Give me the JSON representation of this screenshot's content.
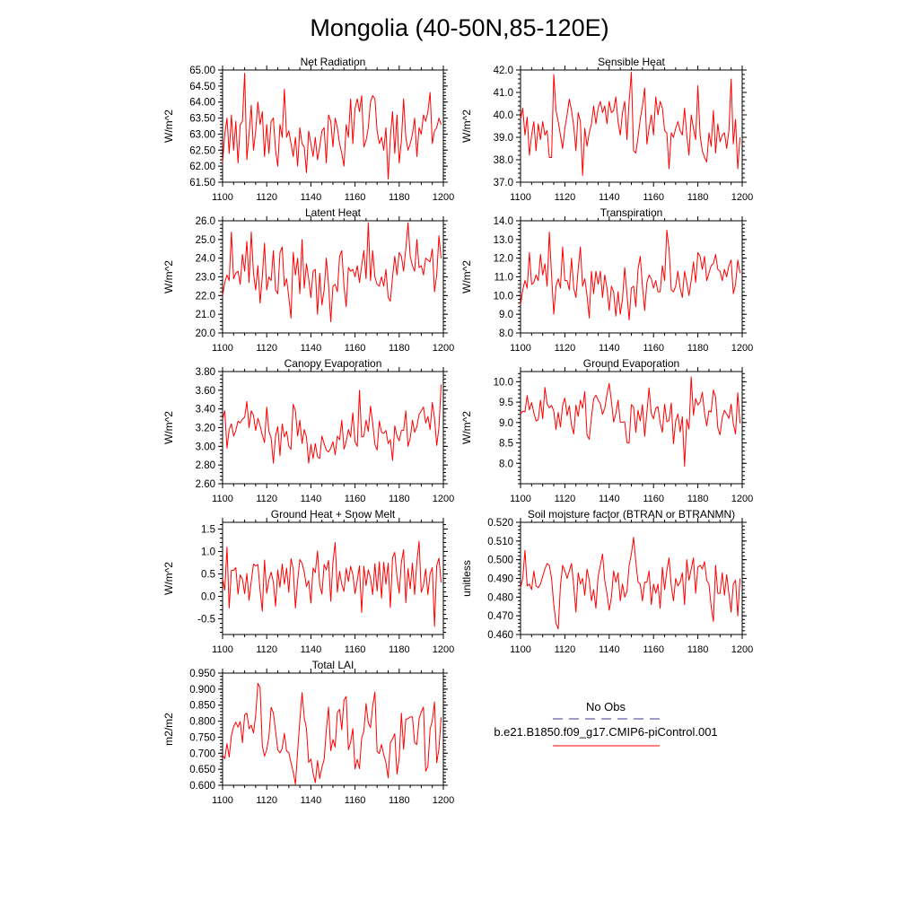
{
  "figure": {
    "title": "Mongolia (40-50N,85-120E)"
  },
  "legend": {
    "obs_label": "No Obs",
    "obs_color": "#3b3b9a",
    "model_label": "b.e21.B1850.f09_g17.CMIP6-piControl.001",
    "model_color": "#ff0000"
  },
  "chart_data": [
    {
      "type": "line",
      "title": "Net Radiation",
      "ylabel": "W/m^2",
      "xlim": [
        1100,
        1200
      ],
      "xticks": [
        1100,
        1120,
        1140,
        1160,
        1180,
        1200
      ],
      "xtick_labels": [
        "1100",
        "1120",
        "1140",
        "1160",
        "1180",
        "1200"
      ],
      "ylim": [
        61.5,
        65.0
      ],
      "yticks": [
        61.5,
        62.0,
        62.5,
        63.0,
        63.5,
        64.0,
        64.5,
        65.0
      ],
      "ytick_labels": [
        "61.50",
        "62.00",
        "62.50",
        "63.00",
        "63.50",
        "64.00",
        "64.50",
        "65.00"
      ],
      "color": "#ff0000",
      "x_start": 1100,
      "values": [
        62.1,
        63.0,
        63.5,
        62.4,
        63.6,
        62.5,
        63.4,
        62.1,
        63.3,
        63.4,
        64.9,
        62.2,
        63.0,
        63.9,
        62.5,
        63.1,
        64.0,
        63.3,
        63.7,
        62.3,
        63.3,
        62.4,
        63.4,
        63.5,
        62.5,
        62.0,
        63.3,
        62.9,
        64.4,
        62.9,
        63.1,
        62.7,
        62.3,
        62.9,
        62.0,
        63.2,
        62.7,
        62.6,
        61.8,
        63.1,
        62.7,
        62.3,
        62.9,
        62.2,
        62.6,
        63.1,
        63.2,
        62.1,
        63.6,
        63.4,
        62.6,
        63.5,
        63.2,
        62.7,
        62.4,
        62.0,
        63.3,
        62.9,
        64.1,
        62.7,
        63.8,
        64.1,
        63.7,
        64.2,
        62.6,
        62.8,
        63.2,
        64.0,
        64.2,
        64.1,
        63.1,
        62.7,
        62.9,
        62.5,
        63.2,
        61.6,
        62.9,
        63.7,
        62.4,
        63.6,
        62.1,
        62.8,
        64.1,
        62.9,
        62.5,
        62.7,
        63.0,
        63.5,
        62.3,
        63.2,
        63.0,
        63.6,
        63.4,
        63.7,
        64.3,
        62.7,
        63.1,
        63.2,
        63.5,
        63.3
      ]
    },
    {
      "type": "line",
      "title": "Sensible Heat",
      "ylabel": "W/m^2",
      "xlim": [
        1100,
        1200
      ],
      "xticks": [
        1100,
        1120,
        1140,
        1160,
        1180,
        1200
      ],
      "xtick_labels": [
        "1100",
        "1120",
        "1140",
        "1160",
        "1180",
        "1200"
      ],
      "ylim": [
        37.0,
        42.0
      ],
      "yticks": [
        37.0,
        38.0,
        39.0,
        40.0,
        41.0,
        42.0
      ],
      "ytick_labels": [
        "37.0",
        "38.0",
        "39.0",
        "40.0",
        "41.0",
        "42.0"
      ],
      "color": "#ff0000",
      "x_start": 1100,
      "values": [
        39.8,
        40.3,
        39.1,
        39.9,
        38.2,
        39.1,
        39.7,
        38.4,
        39.6,
        38.9,
        39.7,
        39.1,
        39.3,
        38.1,
        38.1,
        41.8,
        40.2,
        39.7,
        39.1,
        38.5,
        39.4,
        40.0,
        40.7,
        40.2,
        39.5,
        38.4,
        40.1,
        39.7,
        37.3,
        39.4,
        38.6,
        39.2,
        39.6,
        40.4,
        39.6,
        40.3,
        40.6,
        40.1,
        40.4,
        39.6,
        40.6,
        40.1,
        40.2,
        40.8,
        39.7,
        39.1,
        40.1,
        40.6,
        38.9,
        40.6,
        41.9,
        38.4,
        38.3,
        39.0,
        39.8,
        40.4,
        41.2,
        38.7,
        39.4,
        40.0,
        39.1,
        40.8,
        40.0,
        40.6,
        40.3,
        39.3,
        39.2,
        37.6,
        39.2,
        39.0,
        39.4,
        39.7,
        39.3,
        39.1,
        40.3,
        39.1,
        38.2,
        40.0,
        39.4,
        38.9,
        41.3,
        39.1,
        38.4,
        38.1,
        37.9,
        39.2,
        38.6,
        40.2,
        38.3,
        39.6,
        38.8,
        39.1,
        39.2,
        38.5,
        39.3,
        41.6,
        38.7,
        39.8,
        37.6,
        39.0
      ]
    },
    {
      "type": "line",
      "title": "Latent Heat",
      "ylabel": "W/m^2",
      "xlim": [
        1100,
        1200
      ],
      "xticks": [
        1100,
        1120,
        1140,
        1160,
        1180,
        1200
      ],
      "xtick_labels": [
        "1100",
        "1120",
        "1140",
        "1160",
        "1180",
        "1200"
      ],
      "ylim": [
        20.0,
        26.0
      ],
      "yticks": [
        20.0,
        21.0,
        22.0,
        23.0,
        24.0,
        25.0,
        26.0
      ],
      "ytick_labels": [
        "20.0",
        "21.0",
        "22.0",
        "23.0",
        "24.0",
        "25.0",
        "26.0"
      ],
      "color": "#ff0000",
      "x_start": 1100,
      "values": [
        22.0,
        22.7,
        23.1,
        22.8,
        25.4,
        22.9,
        23.2,
        23.3,
        22.6,
        24.2,
        23.3,
        24.9,
        22.7,
        25.4,
        23.2,
        22.3,
        23.6,
        21.6,
        23.0,
        24.8,
        22.3,
        23.0,
        22.8,
        24.4,
        22.3,
        22.1,
        24.3,
        24.6,
        22.5,
        22.9,
        21.9,
        20.8,
        24.3,
        23.1,
        24.0,
        22.1,
        25.0,
        22.4,
        23.7,
        22.9,
        21.9,
        23.3,
        23.4,
        21.0,
        23.2,
        21.5,
        22.3,
        24.0,
        22.6,
        20.6,
        22.5,
        22.6,
        22.2,
        24.1,
        24.4,
        22.5,
        21.4,
        23.5,
        23.3,
        23.4,
        23.0,
        23.6,
        22.7,
        23.6,
        24.4,
        22.9,
        25.9,
        22.8,
        24.4,
        23.0,
        22.6,
        22.5,
        23.0,
        22.5,
        23.4,
        21.9,
        21.7,
        23.0,
        24.1,
        23.1,
        24.3,
        24.1,
        23.3,
        24.5,
        25.9,
        24.1,
        23.6,
        23.3,
        25.0,
        23.5,
        23.6,
        23.1,
        24.0,
        23.9,
        23.8,
        24.5,
        22.2,
        23.1,
        25.2,
        24.0
      ]
    },
    {
      "type": "line",
      "title": "Transpiration",
      "ylabel": "W/m^2",
      "xlim": [
        1100,
        1200
      ],
      "xticks": [
        1100,
        1120,
        1140,
        1160,
        1180,
        1200
      ],
      "xtick_labels": [
        "1100",
        "1120",
        "1140",
        "1160",
        "1180",
        "1200"
      ],
      "ylim": [
        8.0,
        14.0
      ],
      "yticks": [
        8.0,
        9.0,
        10.0,
        11.0,
        12.0,
        13.0,
        14.0
      ],
      "ytick_labels": [
        "8.0",
        "9.0",
        "10.0",
        "11.0",
        "12.0",
        "13.0",
        "14.0"
      ],
      "color": "#ff0000",
      "x_start": 1100,
      "values": [
        9.5,
        10.3,
        10.8,
        10.4,
        12.3,
        10.6,
        10.7,
        11.1,
        10.8,
        12.2,
        11.1,
        11.7,
        10.5,
        13.4,
        11.1,
        9.0,
        10.5,
        10.9,
        10.4,
        12.6,
        10.8,
        10.8,
        10.3,
        12.0,
        10.4,
        9.9,
        11.4,
        12.6,
        10.5,
        10.9,
        10.0,
        8.8,
        11.3,
        10.1,
        11.3,
        10.6,
        11.3,
        9.9,
        11.1,
        10.4,
        9.2,
        10.5,
        10.2,
        8.9,
        10.2,
        9.0,
        9.8,
        11.5,
        10.1,
        8.7,
        10.4,
        10.5,
        9.4,
        11.4,
        12.1,
        10.5,
        9.2,
        10.7,
        11.1,
        10.9,
        10.4,
        10.8,
        10.2,
        10.2,
        11.6,
        10.8,
        13.5,
        12.5,
        10.3,
        10.2,
        10.5,
        11.3,
        10.4,
        9.9,
        11.3,
        10.7,
        10.0,
        10.8,
        11.8,
        10.7,
        12.3,
        12.1,
        11.4,
        12.1,
        10.8,
        11.2,
        11.6,
        11.7,
        12.2,
        11.4,
        11.3,
        10.8,
        11.4,
        11.0,
        11.6,
        11.9,
        10.1,
        10.6,
        11.9,
        11.2
      ]
    },
    {
      "type": "line",
      "title": "Canopy Evaporation",
      "ylabel": "W/m^2",
      "xlim": [
        1100,
        1200
      ],
      "xticks": [
        1100,
        1120,
        1140,
        1160,
        1180,
        1200
      ],
      "xtick_labels": [
        "1100",
        "1120",
        "1140",
        "1160",
        "1180",
        "1200"
      ],
      "ylim": [
        2.6,
        3.8
      ],
      "yticks": [
        2.6,
        2.8,
        3.0,
        3.2,
        3.4,
        3.6,
        3.8
      ],
      "ytick_labels": [
        "2.60",
        "2.80",
        "3.00",
        "3.20",
        "3.40",
        "3.60",
        "3.80"
      ],
      "color": "#ff0000",
      "x_start": 1100,
      "values": [
        3.29,
        3.38,
        2.98,
        3.18,
        3.24,
        3.11,
        3.17,
        3.27,
        3.25,
        3.29,
        3.31,
        3.48,
        3.2,
        3.38,
        3.33,
        3.17,
        3.3,
        3.22,
        3.12,
        3.04,
        3.42,
        3.16,
        3.09,
        2.82,
        3.11,
        3.21,
        2.9,
        3.24,
        3.1,
        3.16,
        3.0,
        2.97,
        3.45,
        3.38,
        3.11,
        3.28,
        3.03,
        3.18,
        3.1,
        2.82,
        3.02,
        2.87,
        3.03,
        2.89,
        2.87,
        3.11,
        3.03,
        2.96,
        2.94,
        2.98,
        3.05,
        2.91,
        3.11,
        3.07,
        3.28,
        2.97,
        3.05,
        3.18,
        3.1,
        3.36,
        3.05,
        3.0,
        3.6,
        3.1,
        3.11,
        3.28,
        3.16,
        3.43,
        3.25,
        3.02,
        2.96,
        3.27,
        3.15,
        3.14,
        3.17,
        3.03,
        3.07,
        2.85,
        3.22,
        3.11,
        3.06,
        3.17,
        3.17,
        3.38,
        3.0,
        3.09,
        3.28,
        3.15,
        3.21,
        3.34,
        3.38,
        3.42,
        3.25,
        3.32,
        3.18,
        3.47,
        3.3,
        3.01,
        3.2,
        3.66
      ]
    },
    {
      "type": "line",
      "title": "Ground Evaporation",
      "ylabel": "W/m^2",
      "xlim": [
        1100,
        1200
      ],
      "xticks": [
        1100,
        1120,
        1140,
        1160,
        1180,
        1200
      ],
      "xtick_labels": [
        "1100",
        "1120",
        "1140",
        "1160",
        "1180",
        "1200"
      ],
      "ylim": [
        7.5,
        10.25
      ],
      "yticks": [
        8.0,
        8.5,
        9.0,
        9.5,
        10.0
      ],
      "ytick_labels": [
        "8.0",
        "8.5",
        "9.0",
        "9.5",
        "10.0"
      ],
      "color": "#ff0000",
      "x_start": 1100,
      "values": [
        9.21,
        9.28,
        9.26,
        9.66,
        9.31,
        9.49,
        9.24,
        9.04,
        9.07,
        9.55,
        9.09,
        9.86,
        9.46,
        9.36,
        9.42,
        9.28,
        8.83,
        9.25,
        8.89,
        9.42,
        9.6,
        9.17,
        9.41,
        8.93,
        8.72,
        9.43,
        9.15,
        9.55,
        9.35,
        9.76,
        8.69,
        8.59,
        9.13,
        9.58,
        9.67,
        9.55,
        9.46,
        9.2,
        9.35,
        9.69,
        9.96,
        9.52,
        9.01,
        9.22,
        9.55,
        9.01,
        9.01,
        9.02,
        8.51,
        8.5,
        9.44,
        9.38,
        8.76,
        9.3,
        9.04,
        9.44,
        8.66,
        9.25,
        9.85,
        9.22,
        9.09,
        9.35,
        9.39,
        8.99,
        8.76,
        9.45,
        9.02,
        9.05,
        9.48,
        8.48,
        9.04,
        9.21,
        8.77,
        9.14,
        7.93,
        9.08,
        8.84,
        10.12,
        9.18,
        9.59,
        9.43,
        9.5,
        9.74,
        9.24,
        8.92,
        9.29,
        9.26,
        9.8,
        9.62,
        8.87,
        8.7,
        9.12,
        9.3,
        9.21,
        9.1,
        9.45,
        8.97,
        8.72,
        9.73,
        8.98
      ]
    },
    {
      "type": "line",
      "title": "Ground Heat + Snow Melt",
      "ylabel": "W/m^2",
      "xlim": [
        1100,
        1200
      ],
      "xticks": [
        1100,
        1120,
        1140,
        1160,
        1180,
        1200
      ],
      "xtick_labels": [
        "1100",
        "1120",
        "1140",
        "1160",
        "1180",
        "1200"
      ],
      "ylim": [
        -0.85,
        1.65
      ],
      "yticks": [
        -0.5,
        0.0,
        0.5,
        1.0,
        1.5
      ],
      "ytick_labels": [
        "-0.5",
        "0.0",
        "0.5",
        "1.0",
        "1.5"
      ],
      "color": "#ff0000",
      "x_start": 1100,
      "values": [
        0.39,
        0.14,
        1.1,
        -0.26,
        0.58,
        0.58,
        0.64,
        0.05,
        0.48,
        0.38,
        0.06,
        0.51,
        -0.09,
        0.34,
        0.72,
        0.68,
        0.71,
        0.13,
        -0.33,
        0.81,
        0.07,
        0.37,
        0.54,
        0.32,
        -0.22,
        0.59,
        0.2,
        0.72,
        0.27,
        0.63,
        0.09,
        0.84,
        0.61,
        -0.26,
        0.35,
        0.82,
        0.74,
        0.54,
        0.22,
        0.35,
        -0.15,
        0.63,
        0.53,
        1.01,
        0.25,
        0.05,
        0.71,
        0.59,
        0.8,
        -0.11,
        0.76,
        1.2,
        0.09,
        0.56,
        0.26,
        0.11,
        0.63,
        0.33,
        0.67,
        0.49,
        0.06,
        0.35,
        0.68,
        -0.36,
        0.67,
        0.24,
        0.59,
        0.41,
        0.04,
        0.73,
        0.12,
        0.77,
        -0.04,
        0.76,
        0.27,
        0.74,
        -0.25,
        0.86,
        0.98,
        0.43,
        0.07,
        0.76,
        1.04,
        -0.14,
        0.62,
        0.17,
        0.74,
        0.04,
        0.76,
        1.23,
        0.09,
        0.25,
        0.61,
        0.04,
        0.51,
        0.64,
        -0.67,
        0.69,
        0.85,
        0.31
      ]
    },
    {
      "type": "line",
      "title": "Soil moisture factor (BTRAN or BTRANMN)",
      "ylabel": "unitless",
      "xlim": [
        1100,
        1200
      ],
      "xticks": [
        1100,
        1120,
        1140,
        1160,
        1180,
        1200
      ],
      "xtick_labels": [
        "1100",
        "1120",
        "1140",
        "1160",
        "1180",
        "1200"
      ],
      "ylim": [
        0.46,
        0.52
      ],
      "yticks": [
        0.46,
        0.47,
        0.48,
        0.49,
        0.5,
        0.51,
        0.52
      ],
      "ytick_labels": [
        "0.460",
        "0.470",
        "0.480",
        "0.490",
        "0.500",
        "0.510",
        "0.520"
      ],
      "color": "#ff0000",
      "x_start": 1100,
      "values": [
        0.485,
        0.49,
        0.505,
        0.486,
        0.487,
        0.484,
        0.494,
        0.486,
        0.485,
        0.487,
        0.491,
        0.495,
        0.498,
        0.497,
        0.49,
        0.476,
        0.466,
        0.463,
        0.486,
        0.497,
        0.494,
        0.49,
        0.494,
        0.498,
        0.486,
        0.472,
        0.493,
        0.487,
        0.49,
        0.481,
        0.495,
        0.489,
        0.478,
        0.484,
        0.474,
        0.491,
        0.497,
        0.503,
        0.489,
        0.482,
        0.473,
        0.48,
        0.494,
        0.488,
        0.493,
        0.478,
        0.487,
        0.48,
        0.483,
        0.497,
        0.503,
        0.512,
        0.499,
        0.488,
        0.487,
        0.478,
        0.488,
        0.488,
        0.494,
        0.476,
        0.487,
        0.482,
        0.487,
        0.474,
        0.496,
        0.484,
        0.494,
        0.501,
        0.486,
        0.478,
        0.49,
        0.486,
        0.488,
        0.493,
        0.476,
        0.5,
        0.489,
        0.495,
        0.501,
        0.482,
        0.496,
        0.497,
        0.495,
        0.499,
        0.489,
        0.487,
        0.475,
        0.467,
        0.497,
        0.482,
        0.482,
        0.493,
        0.481,
        0.492,
        0.482,
        0.472,
        0.487,
        0.489,
        0.47,
        0.49
      ]
    },
    {
      "type": "line",
      "title": "Total LAI",
      "ylabel": "m2/m2",
      "xlim": [
        1100,
        1200
      ],
      "xticks": [
        1100,
        1120,
        1140,
        1160,
        1180,
        1200
      ],
      "xtick_labels": [
        "1100",
        "1120",
        "1140",
        "1160",
        "1180",
        "1200"
      ],
      "ylim": [
        0.6,
        0.95
      ],
      "yticks": [
        0.6,
        0.65,
        0.7,
        0.75,
        0.8,
        0.85,
        0.9,
        0.95
      ],
      "ytick_labels": [
        "0.600",
        "0.650",
        "0.700",
        "0.750",
        "0.800",
        "0.850",
        "0.900",
        "0.950"
      ],
      "color": "#ff0000",
      "x_start": 1100,
      "values": [
        0.694,
        0.683,
        0.73,
        0.688,
        0.755,
        0.783,
        0.797,
        0.781,
        0.799,
        0.733,
        0.82,
        0.825,
        0.776,
        0.788,
        0.763,
        0.818,
        0.918,
        0.904,
        0.723,
        0.691,
        0.711,
        0.752,
        0.843,
        0.826,
        0.77,
        0.711,
        0.701,
        0.715,
        0.762,
        0.707,
        0.702,
        0.67,
        0.642,
        0.603,
        0.705,
        0.802,
        0.889,
        0.81,
        0.778,
        0.671,
        0.682,
        0.638,
        0.608,
        0.677,
        0.621,
        0.656,
        0.68,
        0.772,
        0.844,
        0.708,
        0.743,
        0.719,
        0.827,
        0.837,
        0.773,
        0.866,
        0.877,
        0.711,
        0.734,
        0.777,
        0.651,
        0.681,
        0.652,
        0.747,
        0.769,
        0.855,
        0.795,
        0.78,
        0.847,
        0.891,
        0.706,
        0.699,
        0.727,
        0.695,
        0.671,
        0.623,
        0.733,
        0.745,
        0.761,
        0.635,
        0.685,
        0.825,
        0.712,
        0.806,
        0.808,
        0.813,
        0.813,
        0.733,
        0.727,
        0.808,
        0.829,
        0.844,
        0.644,
        0.659,
        0.775,
        0.802,
        0.86,
        0.67,
        0.714,
        0.812
      ]
    }
  ]
}
